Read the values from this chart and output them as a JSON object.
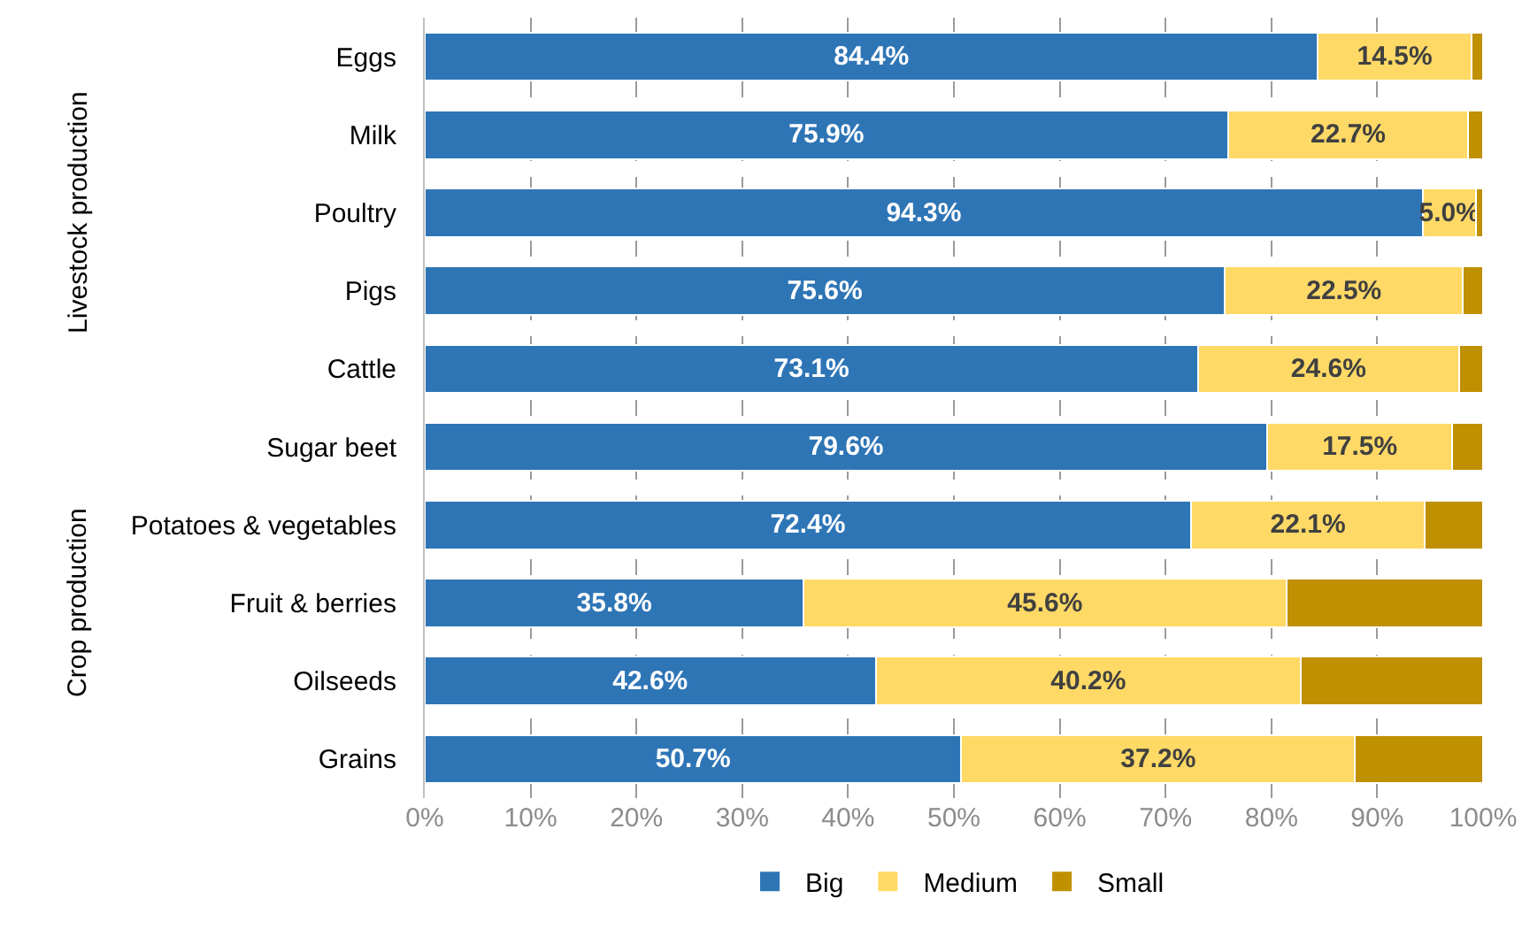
{
  "chart_data": {
    "type": "bar",
    "orientation": "horizontal",
    "stacked": true,
    "categories": [
      "Eggs",
      "Milk",
      "Poultry",
      "Pigs",
      "Cattle",
      "Sugar beet",
      "Potatoes & vegetables",
      "Fruit & berries",
      "Oilseeds",
      "Grains"
    ],
    "series": [
      {
        "name": "Big",
        "color": "#2e75b6",
        "values": [
          84.4,
          75.9,
          94.3,
          75.6,
          73.1,
          79.6,
          72.4,
          35.8,
          42.6,
          50.7
        ],
        "value_labels": [
          "84.4%",
          "75.9%",
          "94.3%",
          "75.6%",
          "73.1%",
          "79.6%",
          "72.4%",
          "35.8%",
          "42.6%",
          "50.7%"
        ]
      },
      {
        "name": "Medium",
        "color": "#ffd966",
        "values": [
          14.5,
          22.7,
          5.0,
          22.5,
          24.6,
          17.5,
          22.1,
          45.6,
          40.2,
          37.2
        ],
        "value_labels": [
          "14.5%",
          "22.7%",
          "5.0%",
          "22.5%",
          "24.6%",
          "17.5%",
          "22.1%",
          "45.6%",
          "40.2%",
          "37.2%"
        ]
      },
      {
        "name": "Small",
        "color": "#bf9000",
        "values": [
          1.1,
          1.4,
          0.7,
          1.9,
          2.3,
          2.9,
          5.5,
          18.6,
          17.2,
          12.1
        ],
        "value_labels": [
          null,
          null,
          null,
          null,
          null,
          null,
          null,
          null,
          null,
          null
        ]
      }
    ],
    "xlim": [
      0,
      100
    ],
    "xticks": [
      {
        "value": 0,
        "label": "0%"
      },
      {
        "value": 10,
        "label": "10%"
      },
      {
        "value": 20,
        "label": "20%"
      },
      {
        "value": 30,
        "label": "30%"
      },
      {
        "value": 40,
        "label": "40%"
      },
      {
        "value": 50,
        "label": "50%"
      },
      {
        "value": 60,
        "label": "60%"
      },
      {
        "value": 70,
        "label": "70%"
      },
      {
        "value": 80,
        "label": "80%"
      },
      {
        "value": 90,
        "label": "90%"
      },
      {
        "value": 100,
        "label": "100%"
      }
    ],
    "annotations": [
      "Livestock production",
      "Crop production"
    ],
    "grid": "x",
    "legend": "bottom"
  }
}
